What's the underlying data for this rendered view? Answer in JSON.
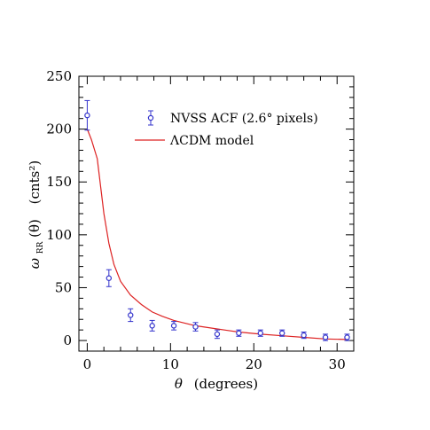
{
  "chart_data": {
    "type": "scatter",
    "xlabel_symbol": "θ",
    "xlabel_text": "(degrees)",
    "ylabel_symbol": "ω",
    "ylabel_sub": "RR",
    "ylabel_arg": "(θ)",
    "ylabel_units": "(cnts²)",
    "xlim": [
      -1,
      32
    ],
    "ylim": [
      -10,
      250
    ],
    "xticks": [
      0,
      10,
      20,
      30
    ],
    "yticks": [
      0,
      50,
      100,
      150,
      200,
      250
    ],
    "grid": false,
    "legend_position": "top-right",
    "colors": {
      "data": "#3333cc",
      "model": "#dd2222",
      "axes": "#000000"
    },
    "series": [
      {
        "name": "NVSS ACF (2.6° pixels)",
        "kind": "points-with-errorbars",
        "x": [
          0.0,
          2.6,
          5.2,
          7.8,
          10.4,
          13.0,
          15.6,
          18.2,
          20.8,
          23.4,
          26.0,
          28.6,
          31.2
        ],
        "y": [
          213,
          59,
          24,
          14,
          14,
          13,
          6,
          7,
          7,
          7,
          5,
          3,
          3
        ],
        "err": [
          14,
          8,
          6,
          5,
          4,
          4,
          4,
          3,
          3,
          3,
          3,
          3,
          3
        ]
      },
      {
        "name": "ΛCDM model",
        "kind": "line",
        "x": [
          0.0,
          0.5,
          1.2,
          2.0,
          2.6,
          3.2,
          4.0,
          5.2,
          6.5,
          7.8,
          9.0,
          10.4,
          13.0,
          15.6,
          18.2,
          20.8,
          23.4,
          26.0,
          28.6,
          31.2
        ],
        "y": [
          200,
          190,
          172,
          120,
          92,
          72,
          56,
          43,
          34,
          27,
          23,
          19,
          14,
          11,
          8,
          6,
          4.5,
          3,
          1.5,
          1
        ]
      }
    ]
  }
}
